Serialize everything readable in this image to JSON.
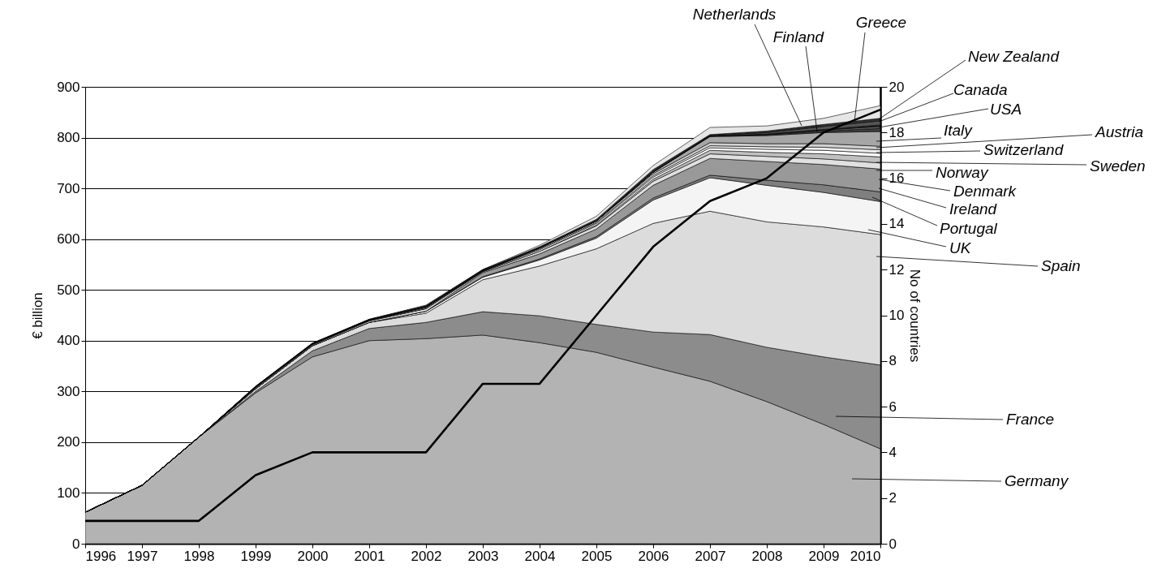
{
  "chart_data": {
    "type": "area",
    "stacked": true,
    "ylabel": "€ billion",
    "y2label": "No of countries",
    "grid": "y",
    "legend": "right",
    "x": [
      1996,
      1997,
      1998,
      1999,
      2000,
      2001,
      2002,
      2003,
      2004,
      2005,
      2006,
      2007,
      2008,
      2009,
      2010
    ],
    "xlim": [
      1996,
      2010
    ],
    "xticks": [
      1996,
      1997,
      1998,
      1999,
      2000,
      2001,
      2002,
      2003,
      2004,
      2005,
      2006,
      2007,
      2008,
      2009,
      2010
    ],
    "ylim": [
      0,
      900
    ],
    "yticks": [
      0,
      100,
      200,
      300,
      400,
      500,
      600,
      700,
      800,
      900
    ],
    "y2lim": [
      0,
      20
    ],
    "y2ticks": [
      0,
      2,
      4,
      6,
      8,
      10,
      12,
      14,
      16,
      18,
      20
    ],
    "series": [
      {
        "name": "Germany",
        "color": "#b3b3b3",
        "values": [
          62,
          115,
          210,
          297,
          368,
          400,
          404,
          411,
          396,
          377,
          348,
          320,
          280,
          235,
          187
        ]
      },
      {
        "name": "France",
        "color": "#8c8c8c",
        "values": [
          0,
          0,
          0,
          3,
          12,
          24,
          32,
          46,
          53,
          55,
          69,
          92,
          107,
          133,
          165
        ]
      },
      {
        "name": "Spain",
        "color": "#dcdcdc",
        "values": [
          0,
          0,
          0,
          5,
          10,
          12,
          18,
          63,
          98,
          149,
          214,
          243,
          247,
          256,
          257
        ]
      },
      {
        "name": "UK",
        "color": "#f4f4f4",
        "values": [
          0,
          0,
          0,
          0,
          0,
          0,
          4,
          5,
          12,
          21,
          46,
          66,
          72,
          68,
          65
        ]
      },
      {
        "name": "Portugal",
        "color": "#7f7f7f",
        "values": [
          0,
          0,
          0,
          0,
          0,
          0,
          0,
          1,
          2,
          3,
          4,
          5,
          10,
          15,
          19
        ]
      },
      {
        "name": "Ireland",
        "color": "#999999",
        "values": [
          0,
          0,
          0,
          0,
          0,
          0,
          0,
          8,
          10,
          15,
          25,
          33,
          37,
          40,
          45
        ]
      },
      {
        "name": "Denmark",
        "color": "#e0e0e0",
        "values": [
          0,
          0,
          0,
          2,
          2,
          3,
          5,
          2,
          5,
          6,
          8,
          9,
          10,
          11,
          12
        ]
      },
      {
        "name": "Norway",
        "color": "#c0c0c0",
        "values": [
          0,
          0,
          0,
          0,
          0,
          0,
          0,
          0,
          0,
          2,
          4,
          7,
          8,
          10,
          12
        ]
      },
      {
        "name": "Sweden",
        "color": "#ffffff",
        "values": [
          0,
          0,
          0,
          1,
          1,
          1,
          2,
          1,
          3,
          3,
          4,
          5,
          6,
          7,
          7
        ]
      },
      {
        "name": "Switzerland",
        "color": "#eeeeee",
        "values": [
          0,
          0,
          0,
          0,
          0,
          0,
          0,
          0,
          2,
          2,
          3,
          4,
          5,
          6,
          7
        ]
      },
      {
        "name": "Austria",
        "color": "#d0d0d0",
        "values": [
          0,
          0,
          0,
          1,
          1,
          1,
          2,
          1,
          2,
          3,
          4,
          6,
          6,
          7,
          7
        ]
      },
      {
        "name": "Italy",
        "color": "#a6a6a6",
        "values": [
          0,
          0,
          0,
          0,
          0,
          0,
          0,
          0,
          0,
          0,
          3,
          12,
          16,
          22,
          29
        ]
      },
      {
        "name": "USA",
        "color": "#404040",
        "values": [
          0,
          0,
          0,
          0,
          0,
          0,
          0,
          0,
          0,
          0,
          0,
          1,
          2,
          3,
          6
        ]
      },
      {
        "name": "Canada",
        "color": "#606060",
        "values": [
          0,
          0,
          0,
          0,
          0,
          0,
          0,
          0,
          0,
          0,
          0,
          0,
          1,
          2,
          4
        ]
      },
      {
        "name": "New Zealand",
        "color": "#202020",
        "values": [
          0,
          0,
          0,
          0,
          0,
          0,
          0,
          0,
          0,
          0,
          0,
          0,
          0,
          1,
          3
        ]
      },
      {
        "name": "Greece",
        "color": "#555555",
        "values": [
          0,
          0,
          0,
          0,
          0,
          0,
          0,
          0,
          0,
          0,
          2,
          1,
          3,
          6,
          8
        ]
      },
      {
        "name": "Finland",
        "color": "#333333",
        "values": [
          0,
          0,
          0,
          1,
          1,
          1,
          2,
          2,
          2,
          3,
          3,
          2,
          3,
          4,
          5
        ]
      },
      {
        "name": "Netherlands",
        "color": "#e6e6e6",
        "values": [
          0,
          0,
          0,
          0,
          0,
          0,
          1,
          0,
          3,
          6,
          8,
          14,
          10,
          12,
          25
        ]
      },
      {
        "type": "line",
        "axis": "y2",
        "color": "#000000",
        "values": [
          1,
          1,
          1,
          3,
          4,
          4,
          4,
          7,
          7,
          10,
          13,
          15,
          16,
          18,
          19
        ]
      }
    ]
  }
}
